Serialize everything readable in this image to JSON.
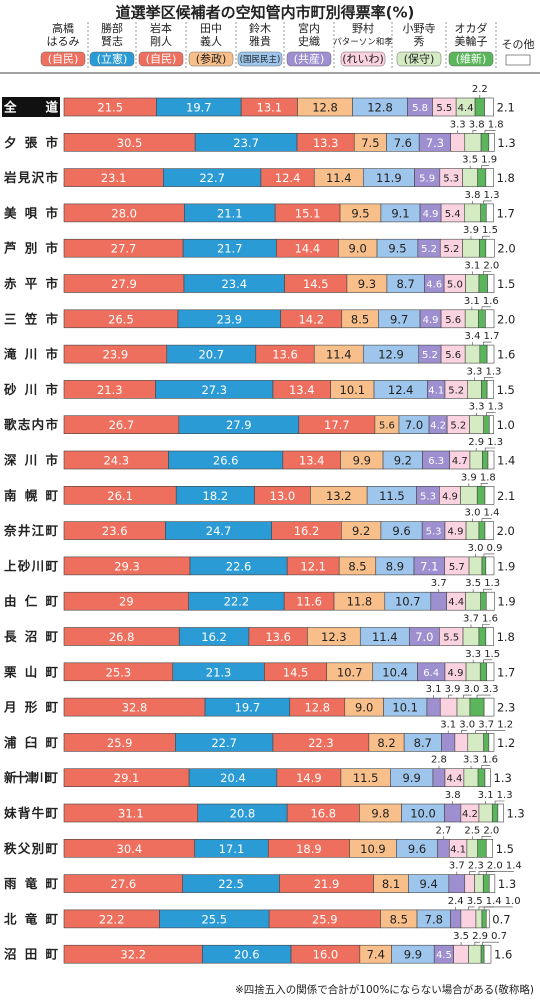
{
  "chart_data": {
    "type": "stacked-bar",
    "title": "道選挙区候補者の空知管内市町別得票率(%)",
    "note": "※四捨五入の関係で合計が100%にならない場合がある(敬称略)",
    "categories": [
      "全道",
      "夕張市",
      "岩見沢市",
      "美唄市",
      "芦別市",
      "赤平市",
      "三笠市",
      "滝川市",
      "砂川市",
      "歌志内市",
      "深川市",
      "南幌町",
      "奈井江町",
      "上砂川町",
      "由仁町",
      "長沼町",
      "栗山町",
      "月形町",
      "浦臼町",
      "新十津川町",
      "妹背牛町",
      "秩父別町",
      "雨竜町",
      "北竜町",
      "沼田町"
    ],
    "xlim": [
      0,
      100
    ],
    "series": [
      {
        "name": [
          "高橋",
          "はるみ"
        ],
        "party": "(自民)",
        "color": "#ee6f5e",
        "values": [
          21.5,
          30.5,
          23.1,
          28.0,
          27.7,
          27.9,
          26.5,
          23.9,
          21.3,
          26.7,
          24.3,
          26.1,
          23.6,
          29.3,
          29.0,
          26.8,
          25.3,
          32.8,
          25.9,
          29.1,
          31.1,
          30.4,
          27.6,
          22.2,
          32.2
        ],
        "value_labels": [
          null,
          null,
          null,
          "28.0",
          null,
          null,
          null,
          null,
          null,
          null,
          null,
          null,
          null,
          null,
          null,
          null,
          null,
          null,
          null,
          null,
          null,
          null,
          null,
          null,
          null
        ]
      },
      {
        "name": [
          "勝部",
          "賢志"
        ],
        "party": "(立憲)",
        "color": "#2b9bd6",
        "values": [
          19.7,
          23.7,
          22.7,
          21.1,
          21.7,
          23.4,
          23.9,
          20.7,
          27.3,
          27.9,
          26.6,
          18.2,
          24.7,
          22.6,
          22.2,
          16.2,
          21.3,
          19.7,
          22.7,
          20.4,
          20.8,
          17.1,
          22.5,
          25.5,
          20.6
        ]
      },
      {
        "name": [
          "岩本",
          "剛人"
        ],
        "party": "(自民)",
        "color": "#ee6f5e",
        "values": [
          13.1,
          13.3,
          12.4,
          15.1,
          14.4,
          14.5,
          14.2,
          13.6,
          13.4,
          17.7,
          13.4,
          13.0,
          16.2,
          12.1,
          11.6,
          13.6,
          14.5,
          12.8,
          22.3,
          14.9,
          16.8,
          18.9,
          21.9,
          25.9,
          16.0
        ],
        "value_labels": [
          null,
          null,
          null,
          null,
          null,
          null,
          null,
          null,
          null,
          null,
          null,
          "13.0",
          null,
          null,
          null,
          null,
          null,
          null,
          null,
          null,
          null,
          null,
          null,
          null,
          "16.0"
        ]
      },
      {
        "name": [
          "田中",
          "義人"
        ],
        "party": "(参政)",
        "color": "#f9bf8a",
        "values": [
          12.8,
          7.5,
          11.4,
          9.5,
          9.0,
          9.3,
          8.5,
          11.4,
          10.1,
          5.6,
          9.9,
          13.2,
          9.2,
          8.5,
          11.8,
          12.3,
          10.7,
          9.0,
          8.2,
          11.5,
          9.8,
          10.9,
          8.1,
          8.5,
          7.4
        ],
        "value_labels": [
          null,
          null,
          null,
          null,
          "9.0",
          null,
          null,
          null,
          null,
          null,
          null,
          null,
          null,
          null,
          null,
          null,
          null,
          "9.0",
          null,
          null,
          null,
          null,
          null,
          null,
          null
        ]
      },
      {
        "name": [
          "鈴木",
          "雅貴"
        ],
        "party": "(国民民主)",
        "color": "#9ec5ec",
        "values": [
          12.8,
          7.6,
          11.9,
          9.1,
          9.5,
          8.7,
          9.7,
          12.9,
          12.4,
          7.0,
          9.2,
          11.5,
          9.6,
          8.9,
          10.7,
          11.4,
          10.4,
          10.1,
          8.7,
          9.9,
          10.0,
          9.6,
          9.4,
          7.8,
          9.9
        ],
        "value_labels": [
          null,
          null,
          null,
          null,
          null,
          null,
          null,
          null,
          null,
          "7.0",
          null,
          null,
          null,
          null,
          null,
          null,
          null,
          null,
          null,
          null,
          "10.0",
          null,
          null,
          null,
          null
        ]
      },
      {
        "name": [
          "宮内",
          "史織"
        ],
        "party": "(共産)",
        "color": "#9d8fd0",
        "values": [
          5.8,
          7.3,
          5.9,
          4.9,
          5.2,
          4.6,
          4.9,
          5.2,
          4.1,
          4.2,
          6.3,
          5.3,
          5.3,
          7.1,
          3.7,
          7.0,
          6.4,
          3.1,
          3.1,
          2.8,
          3.8,
          2.7,
          3.7,
          2.4,
          4.5
        ],
        "value_labels": [
          null,
          null,
          null,
          null,
          null,
          null,
          null,
          null,
          null,
          null,
          null,
          null,
          null,
          null,
          null,
          "7.0",
          null,
          null,
          null,
          null,
          null,
          null,
          null,
          null,
          null
        ]
      },
      {
        "name": [
          "野村",
          "パターソン和孝"
        ],
        "party": "(れいわ)",
        "color": "#fbd3e0",
        "values": [
          5.5,
          3.3,
          5.3,
          5.4,
          5.2,
          5.0,
          5.6,
          5.6,
          5.2,
          5.2,
          4.7,
          4.9,
          4.9,
          5.7,
          4.4,
          5.5,
          4.9,
          3.9,
          3.0,
          4.4,
          4.2,
          4.1,
          2.3,
          3.5,
          3.5
        ],
        "value_labels": [
          null,
          null,
          null,
          null,
          null,
          "5.0",
          null,
          null,
          null,
          null,
          null,
          null,
          null,
          null,
          null,
          null,
          null,
          null,
          "3.0",
          null,
          null,
          null,
          null,
          null,
          null
        ]
      },
      {
        "name": [
          "小野寺",
          "秀"
        ],
        "party": "(保守)",
        "color": "#d5ebc4",
        "values": [
          4.4,
          3.8,
          3.5,
          3.8,
          3.9,
          3.1,
          3.1,
          3.4,
          3.3,
          3.3,
          2.9,
          3.9,
          3.0,
          3.0,
          3.5,
          3.7,
          3.3,
          3.0,
          3.7,
          3.3,
          3.1,
          2.5,
          2.0,
          1.4,
          2.9
        ],
        "value_labels": [
          null,
          null,
          null,
          null,
          null,
          null,
          null,
          null,
          null,
          null,
          null,
          null,
          "3.0",
          "3.0",
          null,
          null,
          null,
          "3.0",
          null,
          null,
          null,
          null,
          "2.0",
          null,
          null
        ]
      },
      {
        "name": [
          "オカダ",
          "美輪子"
        ],
        "party": "(維新)",
        "color": "#5bb55b",
        "values": [
          2.2,
          1.8,
          1.9,
          1.3,
          1.5,
          2.0,
          1.6,
          1.7,
          1.3,
          1.3,
          1.3,
          1.8,
          1.4,
          0.9,
          1.3,
          1.6,
          1.5,
          3.3,
          1.2,
          1.6,
          1.3,
          2.0,
          1.4,
          1.0,
          0.7
        ],
        "value_labels": [
          null,
          null,
          null,
          null,
          null,
          "2.0",
          null,
          null,
          null,
          null,
          null,
          null,
          null,
          null,
          null,
          null,
          null,
          null,
          null,
          null,
          null,
          "2.0",
          null,
          "1.0",
          null
        ]
      },
      {
        "name": [
          "その他"
        ],
        "color": "#ffffff",
        "values": [
          2.1,
          1.3,
          1.8,
          1.7,
          2.0,
          1.5,
          2.0,
          1.6,
          1.5,
          1.0,
          1.4,
          2.1,
          2.0,
          1.9,
          1.9,
          1.8,
          1.7,
          2.3,
          1.2,
          1.3,
          1.3,
          1.5,
          1.3,
          0.7,
          1.6
        ],
        "value_labels": [
          null,
          null,
          null,
          null,
          "2.0",
          null,
          "2.0",
          null,
          null,
          "1.0",
          null,
          null,
          "2.0",
          null,
          null,
          null,
          null,
          null,
          null,
          null,
          null,
          null,
          null,
          null,
          null
        ]
      }
    ]
  }
}
